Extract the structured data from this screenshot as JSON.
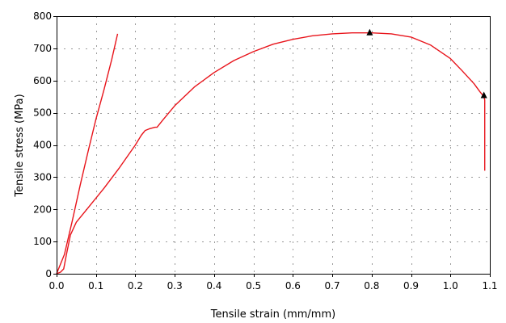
{
  "chart_data": {
    "type": "line",
    "xlabel": "Tensile strain (mm/mm)",
    "ylabel": "Tensile stress (MPa)",
    "xlim": [
      0,
      1.1
    ],
    "ylim": [
      0,
      800
    ],
    "xticks": [
      "0.0",
      "0.1",
      "0.2",
      "0.3",
      "0.4",
      "0.5",
      "0.6",
      "0.7",
      "0.8",
      "0.9",
      "1.0",
      "1.1"
    ],
    "yticks": [
      "0",
      "100",
      "200",
      "300",
      "400",
      "500",
      "600",
      "700",
      "800"
    ],
    "grid": true,
    "line_color": "#e8141b",
    "marker_color": "#000000",
    "series": [
      {
        "x": [
          0.0,
          0.01,
          0.018,
          0.025,
          0.035,
          0.05,
          0.08,
          0.12,
          0.16,
          0.2,
          0.215,
          0.225,
          0.235,
          0.25,
          0.255,
          0.27,
          0.3,
          0.35,
          0.4,
          0.45,
          0.5,
          0.55,
          0.6,
          0.65,
          0.7,
          0.75,
          0.8,
          0.85,
          0.9,
          0.95,
          1.0,
          1.03,
          1.06,
          1.075,
          1.085,
          1.087,
          1.087,
          1.087
        ],
        "y": [
          0,
          5,
          15,
          60,
          120,
          160,
          205,
          265,
          330,
          400,
          430,
          445,
          450,
          455,
          455,
          478,
          522,
          580,
          625,
          662,
          690,
          713,
          728,
          739,
          745,
          748,
          748,
          745,
          735,
          710,
          668,
          630,
          590,
          565,
          550,
          540,
          430,
          320
        ]
      },
      {
        "x": [
          0.0,
          0.02,
          0.04,
          0.06,
          0.08,
          0.1,
          0.12,
          0.14,
          0.155
        ],
        "y": [
          0,
          60,
          165,
          275,
          380,
          480,
          570,
          665,
          745
        ]
      }
    ],
    "markers": [
      {
        "x": 0.795,
        "y": 748
      },
      {
        "x": 1.085,
        "y": 553
      }
    ]
  }
}
